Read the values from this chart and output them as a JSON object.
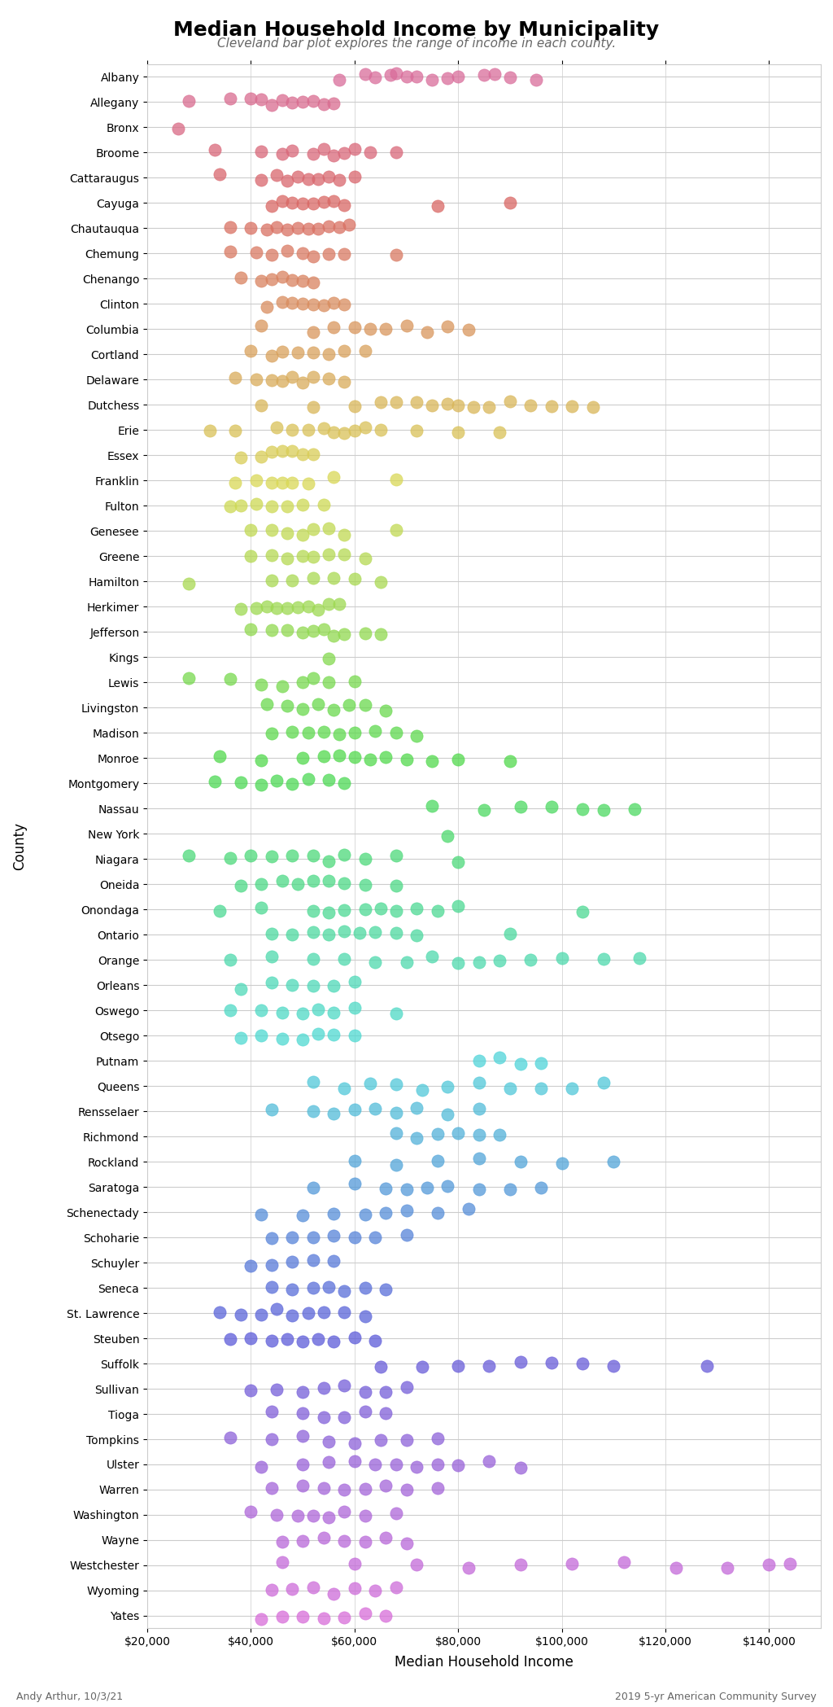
{
  "title": "Median Household Income by Municipality",
  "subtitle": "Cleveland bar plot explores the range of income in each county.",
  "xlabel": "Median Household Income",
  "ylabel": "County",
  "footnote_left": "Andy Arthur, 10/3/21",
  "footnote_right": "2019 5-yr American Community Survey",
  "xlim": [
    20000,
    150000
  ],
  "xticks": [
    20000,
    40000,
    60000,
    80000,
    100000,
    120000,
    140000
  ],
  "xtick_labels": [
    "$20,000",
    "$40,000",
    "$60,000",
    "$80,000",
    "$100,000",
    "$120,000",
    "$140,000"
  ],
  "counties": [
    "Albany",
    "Allegany",
    "Bronx",
    "Broome",
    "Cattaraugus",
    "Cayuga",
    "Chautauqua",
    "Chemung",
    "Chenango",
    "Clinton",
    "Columbia",
    "Cortland",
    "Delaware",
    "Dutchess",
    "Erie",
    "Essex",
    "Franklin",
    "Fulton",
    "Genesee",
    "Greene",
    "Hamilton",
    "Herkimer",
    "Jefferson",
    "Kings",
    "Lewis",
    "Livingston",
    "Madison",
    "Monroe",
    "Montgomery",
    "Nassau",
    "New York",
    "Niagara",
    "Oneida",
    "Onondaga",
    "Ontario",
    "Orange",
    "Orleans",
    "Oswego",
    "Otsego",
    "Putnam",
    "Queens",
    "Rensselaer",
    "Richmond",
    "Rockland",
    "Saratoga",
    "Schenectady",
    "Schoharie",
    "Schuyler",
    "Seneca",
    "St. Lawrence",
    "Steuben",
    "Suffolk",
    "Sullivan",
    "Tioga",
    "Tompkins",
    "Ulster",
    "Warren",
    "Washington",
    "Wayne",
    "Westchester",
    "Wyoming",
    "Yates"
  ],
  "county_data": {
    "Albany": [
      57000,
      62000,
      64000,
      67000,
      68000,
      70000,
      72000,
      75000,
      78000,
      80000,
      85000,
      87000,
      90000,
      95000
    ],
    "Allegany": [
      28000,
      36000,
      40000,
      42000,
      44000,
      46000,
      48000,
      50000,
      52000,
      54000,
      56000
    ],
    "Bronx": [
      26000
    ],
    "Broome": [
      33000,
      42000,
      46000,
      48000,
      52000,
      54000,
      56000,
      58000,
      60000,
      63000,
      68000
    ],
    "Cattaraugus": [
      34000,
      42000,
      45000,
      47000,
      49000,
      51000,
      53000,
      55000,
      57000,
      60000
    ],
    "Cayuga": [
      44000,
      46000,
      48000,
      50000,
      52000,
      54000,
      56000,
      58000,
      76000,
      90000
    ],
    "Chautauqua": [
      36000,
      40000,
      43000,
      45000,
      47000,
      49000,
      51000,
      53000,
      55000,
      57000,
      59000
    ],
    "Chemung": [
      36000,
      41000,
      44000,
      47000,
      50000,
      52000,
      55000,
      58000,
      68000
    ],
    "Chenango": [
      38000,
      42000,
      44000,
      46000,
      48000,
      50000,
      52000
    ],
    "Clinton": [
      43000,
      46000,
      48000,
      50000,
      52000,
      54000,
      56000,
      58000
    ],
    "Columbia": [
      42000,
      52000,
      56000,
      60000,
      63000,
      66000,
      70000,
      74000,
      78000,
      82000
    ],
    "Cortland": [
      40000,
      44000,
      46000,
      49000,
      52000,
      55000,
      58000,
      62000
    ],
    "Delaware": [
      37000,
      41000,
      44000,
      46000,
      48000,
      50000,
      52000,
      55000,
      58000
    ],
    "Dutchess": [
      42000,
      52000,
      60000,
      65000,
      68000,
      72000,
      75000,
      78000,
      80000,
      83000,
      86000,
      90000,
      94000,
      98000,
      102000,
      106000
    ],
    "Erie": [
      32000,
      37000,
      45000,
      48000,
      51000,
      54000,
      56000,
      58000,
      60000,
      62000,
      65000,
      72000,
      80000,
      88000
    ],
    "Essex": [
      38000,
      42000,
      44000,
      46000,
      48000,
      50000,
      52000
    ],
    "Franklin": [
      37000,
      41000,
      44000,
      46000,
      48000,
      51000,
      56000,
      68000
    ],
    "Fulton": [
      36000,
      38000,
      41000,
      44000,
      47000,
      50000,
      54000
    ],
    "Genesee": [
      40000,
      44000,
      47000,
      50000,
      52000,
      55000,
      58000,
      68000
    ],
    "Greene": [
      40000,
      44000,
      47000,
      50000,
      52000,
      55000,
      58000,
      62000
    ],
    "Hamilton": [
      28000,
      44000,
      48000,
      52000,
      56000,
      60000,
      65000
    ],
    "Herkimer": [
      38000,
      41000,
      43000,
      45000,
      47000,
      49000,
      51000,
      53000,
      55000,
      57000
    ],
    "Jefferson": [
      40000,
      44000,
      47000,
      50000,
      52000,
      54000,
      56000,
      58000,
      62000,
      65000
    ],
    "Kings": [
      55000
    ],
    "Lewis": [
      28000,
      36000,
      42000,
      46000,
      50000,
      52000,
      55000,
      60000
    ],
    "Livingston": [
      43000,
      47000,
      50000,
      53000,
      56000,
      59000,
      62000,
      66000
    ],
    "Madison": [
      44000,
      48000,
      51000,
      54000,
      57000,
      60000,
      64000,
      68000,
      72000
    ],
    "Monroe": [
      34000,
      42000,
      50000,
      54000,
      57000,
      60000,
      63000,
      66000,
      70000,
      75000,
      80000,
      90000
    ],
    "Montgomery": [
      33000,
      38000,
      42000,
      45000,
      48000,
      51000,
      55000,
      58000
    ],
    "Nassau": [
      75000,
      85000,
      92000,
      98000,
      104000,
      108000,
      114000
    ],
    "New York": [
      78000
    ],
    "Niagara": [
      28000,
      36000,
      40000,
      44000,
      48000,
      52000,
      55000,
      58000,
      62000,
      68000,
      80000
    ],
    "Oneida": [
      38000,
      42000,
      46000,
      49000,
      52000,
      55000,
      58000,
      62000,
      68000
    ],
    "Onondaga": [
      34000,
      42000,
      52000,
      55000,
      58000,
      62000,
      65000,
      68000,
      72000,
      76000,
      80000,
      104000
    ],
    "Ontario": [
      44000,
      48000,
      52000,
      55000,
      58000,
      61000,
      64000,
      68000,
      72000,
      90000
    ],
    "Orange": [
      36000,
      44000,
      52000,
      58000,
      64000,
      70000,
      75000,
      80000,
      84000,
      88000,
      94000,
      100000,
      108000,
      115000
    ],
    "Orleans": [
      38000,
      44000,
      48000,
      52000,
      56000,
      60000
    ],
    "Oswego": [
      36000,
      42000,
      46000,
      50000,
      53000,
      56000,
      60000,
      68000
    ],
    "Otsego": [
      38000,
      42000,
      46000,
      50000,
      53000,
      56000,
      60000
    ],
    "Putnam": [
      84000,
      88000,
      92000,
      96000
    ],
    "Queens": [
      52000,
      58000,
      63000,
      68000,
      73000,
      78000,
      84000,
      90000,
      96000,
      102000,
      108000
    ],
    "Rensselaer": [
      44000,
      52000,
      56000,
      60000,
      64000,
      68000,
      72000,
      78000,
      84000
    ],
    "Richmond": [
      68000,
      72000,
      76000,
      80000,
      84000,
      88000
    ],
    "Rockland": [
      60000,
      68000,
      76000,
      84000,
      92000,
      100000,
      110000
    ],
    "Saratoga": [
      52000,
      60000,
      66000,
      70000,
      74000,
      78000,
      84000,
      90000,
      96000
    ],
    "Schenectady": [
      42000,
      50000,
      56000,
      62000,
      66000,
      70000,
      76000,
      82000
    ],
    "Schoharie": [
      44000,
      48000,
      52000,
      56000,
      60000,
      64000,
      70000
    ],
    "Schuyler": [
      40000,
      44000,
      48000,
      52000,
      56000
    ],
    "Seneca": [
      44000,
      48000,
      52000,
      55000,
      58000,
      62000,
      66000
    ],
    "St. Lawrence": [
      34000,
      38000,
      42000,
      45000,
      48000,
      51000,
      54000,
      58000,
      62000
    ],
    "Steuben": [
      36000,
      40000,
      44000,
      47000,
      50000,
      53000,
      56000,
      60000,
      64000
    ],
    "Suffolk": [
      65000,
      73000,
      80000,
      86000,
      92000,
      98000,
      104000,
      110000,
      128000
    ],
    "Sullivan": [
      40000,
      45000,
      50000,
      54000,
      58000,
      62000,
      66000,
      70000
    ],
    "Tioga": [
      44000,
      50000,
      54000,
      58000,
      62000,
      66000
    ],
    "Tompkins": [
      36000,
      44000,
      50000,
      55000,
      60000,
      65000,
      70000,
      76000
    ],
    "Ulster": [
      42000,
      50000,
      55000,
      60000,
      64000,
      68000,
      72000,
      76000,
      80000,
      86000,
      92000
    ],
    "Warren": [
      44000,
      50000,
      54000,
      58000,
      62000,
      66000,
      70000,
      76000
    ],
    "Washington": [
      40000,
      45000,
      49000,
      52000,
      55000,
      58000,
      62000,
      68000
    ],
    "Wayne": [
      46000,
      50000,
      54000,
      58000,
      62000,
      66000,
      70000
    ],
    "Westchester": [
      46000,
      60000,
      72000,
      82000,
      92000,
      102000,
      112000,
      122000,
      132000,
      140000,
      144000
    ],
    "Wyoming": [
      44000,
      48000,
      52000,
      56000,
      60000,
      64000,
      68000
    ],
    "Yates": [
      42000,
      46000,
      50000,
      54000,
      58000,
      62000,
      66000
    ]
  },
  "dot_size": 120,
  "alpha": 0.75,
  "figsize": [
    10.24,
    20.97
  ],
  "dpi": 100,
  "bg_color": "#FFFFFF",
  "grid_color": "#CCCCCC",
  "title_fontsize": 18,
  "subtitle_fontsize": 11,
  "tick_fontsize": 10,
  "label_fontsize": 12
}
